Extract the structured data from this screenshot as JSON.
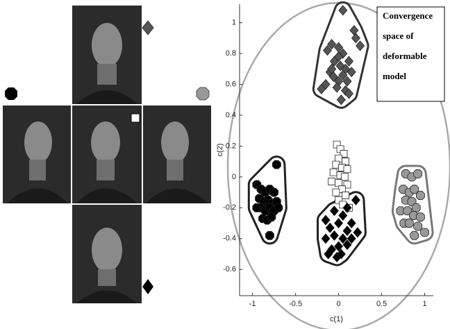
{
  "chart_data": {
    "type": "scatter",
    "x_label": "c(1)",
    "y_label": "c(2)",
    "annotation_lines": [
      "Convergence",
      "space of",
      "deformable",
      "model"
    ],
    "xlim": [
      -1.15,
      1.1
    ],
    "ylim": [
      -0.77,
      1.12
    ],
    "xticks": [
      -1,
      -0.5,
      0,
      0.5,
      1
    ],
    "yticks": [
      -0.6,
      -0.4,
      -0.2,
      0,
      0.2,
      0.4,
      0.6,
      0.8,
      1
    ],
    "series": [
      {
        "color": "#555555",
        "outline": "#333333",
        "marker": "diamond",
        "x": [
          -0.13,
          -0.08,
          0.0,
          0.05,
          0.18,
          0.2,
          0.25,
          0.05,
          -0.05,
          0.02,
          0.08,
          0.12,
          -0.1,
          -0.06,
          0.0,
          0.05,
          0.1,
          0.15,
          -0.15,
          -0.2,
          -0.02,
          0.08,
          0.12,
          0.03,
          -0.08,
          0.0
        ],
        "values": [
          0.82,
          0.86,
          0.84,
          0.8,
          0.95,
          0.9,
          0.85,
          1.08,
          0.75,
          0.72,
          0.7,
          0.75,
          0.68,
          0.65,
          0.62,
          0.66,
          0.62,
          0.68,
          0.6,
          0.57,
          0.58,
          0.56,
          0.54,
          0.5,
          0.7,
          0.78
        ]
      },
      {
        "color": "#000000",
        "outline": "#222222",
        "marker": "octagon",
        "x": [
          -0.72,
          -0.95,
          -0.9,
          -0.85,
          -0.8,
          -0.75,
          -0.92,
          -0.87,
          -0.82,
          -0.77,
          -0.72,
          -0.9,
          -0.85,
          -0.8,
          -0.75,
          -0.95,
          -0.88,
          -0.83,
          -0.78,
          -0.8,
          -0.7
        ],
        "values": [
          0.08,
          -0.05,
          -0.08,
          -0.1,
          -0.08,
          -0.1,
          -0.14,
          -0.16,
          -0.15,
          -0.17,
          -0.16,
          -0.2,
          -0.22,
          -0.2,
          -0.22,
          -0.2,
          -0.27,
          -0.28,
          -0.26,
          -0.38,
          -0.2
        ]
      },
      {
        "color": "#ffffff",
        "marker": "square",
        "x": [
          -0.02,
          0.02,
          0.06,
          0.0,
          0.08,
          -0.03,
          0.04,
          0.1,
          -0.06,
          0.02,
          0.07,
          -0.08,
          0.0,
          0.1,
          0.04,
          -0.03,
          0.08,
          0.0,
          0.12,
          0.05
        ],
        "values": [
          0.21,
          0.18,
          0.15,
          0.12,
          0.1,
          0.08,
          0.06,
          0.05,
          0.03,
          0.01,
          0.0,
          -0.03,
          -0.04,
          -0.05,
          -0.08,
          -0.1,
          -0.12,
          -0.15,
          -0.2,
          -0.18
        ]
      },
      {
        "color": "#000000",
        "outline": "#222222",
        "marker": "diamond",
        "x": [
          0.2,
          0.1,
          0.05,
          -0.05,
          -0.15,
          0.15,
          0.0,
          -0.1,
          0.1,
          0.22,
          -0.05,
          0.05,
          -0.15,
          0.0,
          0.1,
          -0.08,
          -0.02,
          0.03,
          -0.12,
          0.15
        ],
        "values": [
          -0.15,
          -0.2,
          -0.25,
          -0.22,
          -0.28,
          -0.3,
          -0.3,
          -0.33,
          -0.35,
          -0.36,
          -0.38,
          -0.4,
          -0.4,
          -0.45,
          -0.44,
          -0.47,
          -0.52,
          -0.5,
          -0.5,
          -0.4
        ]
      },
      {
        "color": "#999999",
        "outline": "#777777",
        "marker": "octagon",
        "x": [
          0.78,
          0.85,
          0.92,
          0.75,
          0.82,
          0.88,
          0.95,
          0.78,
          0.85,
          0.9,
          0.72,
          0.8,
          0.87,
          0.95,
          0.76,
          0.82,
          0.92,
          1.0,
          0.88
        ],
        "values": [
          0.02,
          0.0,
          0.02,
          -0.08,
          -0.1,
          -0.08,
          -0.12,
          -0.15,
          -0.16,
          -0.2,
          -0.22,
          -0.22,
          -0.25,
          -0.26,
          -0.3,
          -0.3,
          -0.32,
          -0.36,
          -0.38
        ]
      }
    ]
  }
}
